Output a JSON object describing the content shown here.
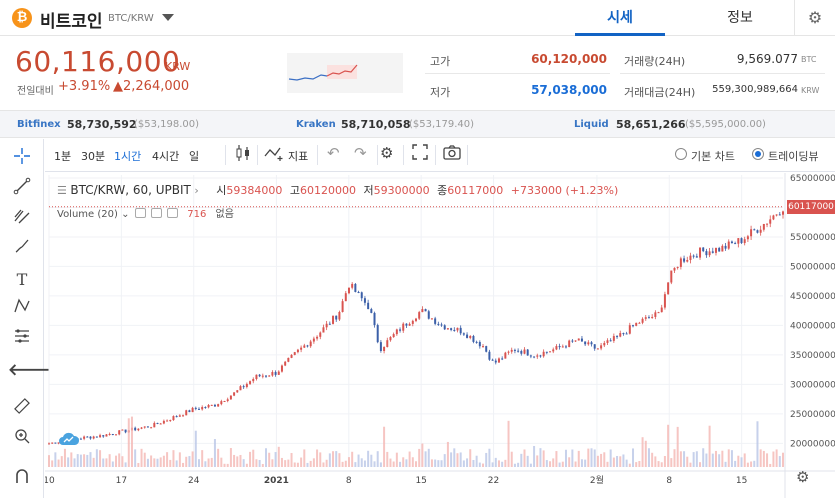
{
  "header": {
    "coin_icon": "₿",
    "coin_name": "비트코인",
    "coin_pair": "BTC/KRW",
    "tabs": [
      {
        "label": "시세"
      },
      {
        "label": "정보"
      }
    ],
    "settings_icon": "gear-icon"
  },
  "summary": {
    "price": "60,116,000",
    "currency": "KRW",
    "change_label": "전일대비",
    "change_pct": "+3.91%",
    "change_amt": "▲2,264,000",
    "high_label": "고가",
    "high_value": "60,120,000",
    "low_label": "저가",
    "low_value": "57,038,000",
    "volume_label": "거래량(24H)",
    "volume_value": "9,569.077",
    "volume_unit": "BTC",
    "amount_label": "거래대금(24H)",
    "amount_value": "559,300,989,664",
    "amount_unit": "KRW"
  },
  "exchanges": [
    {
      "name": "Bitfinex",
      "price": "58,730,592",
      "usd": "($53,198.00)"
    },
    {
      "name": "Kraken",
      "price": "58,710,058",
      "usd": "($53,179.40)"
    },
    {
      "name": "Liquid",
      "price": "58,651,266",
      "usd": "($5,595,000.00)"
    }
  ],
  "toolbar": {
    "timeframes": [
      "1분",
      "30분",
      "1시간",
      "4시간",
      "일"
    ],
    "active_timeframe": "1시간",
    "indicator_label": "지표",
    "basic_chart_label": "기본 차트",
    "trading_view_label": "트레이딩뷰",
    "selected_mode": "트레이딩뷰"
  },
  "legend": {
    "symbol": "BTC/KRW, 60, UPBIT",
    "open_label": "시",
    "open": "59384000",
    "high_label": "고",
    "high": "60120000",
    "low_label": "저",
    "low": "59300000",
    "close_label": "종",
    "close": "60117000",
    "change": "+733000 (+1.23%)",
    "volume_title": "Volume (20)",
    "volume_value": "716",
    "volume_extra": "없음"
  },
  "price_tag": "60117000",
  "colors": {
    "up": "#d9534f",
    "down": "#3b5fa8",
    "accent": "#1263c4"
  },
  "chart_data": {
    "type": "line",
    "x": [
      "2020-12-10",
      "2020-12-12",
      "2020-12-15",
      "2020-12-17",
      "2020-12-20",
      "2020-12-22",
      "2020-12-24",
      "2020-12-26",
      "2020-12-28",
      "2020-12-30",
      "2021-01-01",
      "2021-01-03",
      "2021-01-05",
      "2021-01-07",
      "2021-01-08",
      "2021-01-10",
      "2021-01-11",
      "2021-01-13",
      "2021-01-15",
      "2021-01-17",
      "2021-01-19",
      "2021-01-21",
      "2021-01-22",
      "2021-01-24",
      "2021-01-26",
      "2021-01-28",
      "2021-01-30",
      "2021-02-01",
      "2021-02-03",
      "2021-02-05",
      "2021-02-07",
      "2021-02-08",
      "2021-02-09",
      "2021-02-11",
      "2021-02-13",
      "2021-02-15",
      "2021-02-17",
      "2021-02-18",
      "2021-02-19"
    ],
    "values": [
      20000000,
      20700000,
      21300000,
      22000000,
      23000000,
      24400000,
      25800000,
      26500000,
      28600000,
      31300000,
      32000000,
      35500000,
      38500000,
      42000000,
      47000000,
      43000000,
      36000000,
      39500000,
      42500000,
      40000000,
      39000000,
      36500000,
      33500000,
      36000000,
      35000000,
      36000000,
      37500000,
      36000000,
      38000000,
      40500000,
      42000000,
      48000000,
      51000000,
      52500000,
      53000000,
      54500000,
      57000000,
      58500000,
      60117000
    ],
    "series": [
      {
        "name": "BTC/KRW, 60, UPBIT",
        "values": [
          20000000,
          20700000,
          21300000,
          22000000,
          23000000,
          24400000,
          25800000,
          26500000,
          28600000,
          31300000,
          32000000,
          35500000,
          38500000,
          42000000,
          47000000,
          43000000,
          36000000,
          39500000,
          42500000,
          40000000,
          39000000,
          36500000,
          33500000,
          36000000,
          35000000,
          36000000,
          37500000,
          36000000,
          38000000,
          40500000,
          42000000,
          48000000,
          51000000,
          52500000,
          53000000,
          54500000,
          57000000,
          58500000,
          60117000
        ]
      }
    ],
    "x_ticks": [
      "10",
      "17",
      "24",
      "2021",
      "8",
      "15",
      "22",
      "2월",
      "8",
      "15"
    ],
    "y_ticks": [
      20000000,
      25000000,
      30000000,
      35000000,
      40000000,
      45000000,
      50000000,
      55000000,
      60000000,
      65000000
    ],
    "ylim": [
      16000000,
      65500000
    ],
    "xlim": [
      "2020-12-10",
      "2021-02-19"
    ],
    "grid": true,
    "last_price_line": 60117000
  }
}
